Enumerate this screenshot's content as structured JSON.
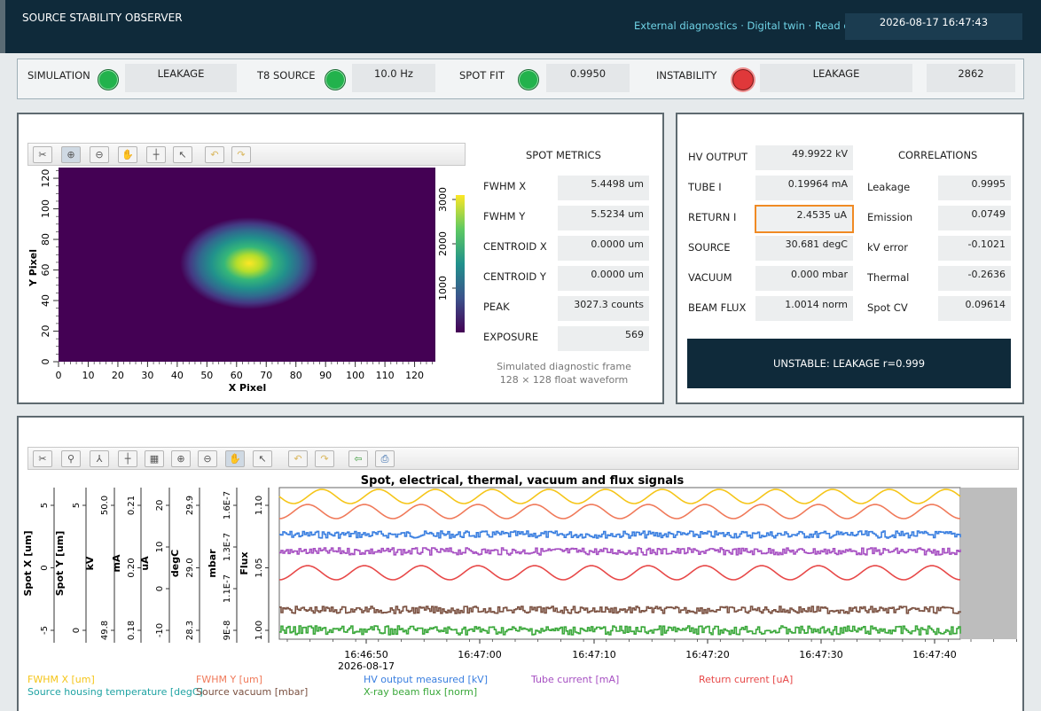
{
  "header": {
    "title": "SOURCE STABILITY OBSERVER",
    "info": "External diagnostics · Digital twin · Read only",
    "clock": "2026-08-17 16:47:43"
  },
  "status": {
    "simulation_label": "SIMULATION",
    "simulation_value": "LEAKAGE",
    "t8_label": "T8 SOURCE",
    "t8_value": "10.0 Hz",
    "spotfit_label": "SPOT FIT",
    "spotfit_value": "0.9950",
    "instability_label": "INSTABILITY",
    "instability_value": "LEAKAGE",
    "counter": "2862",
    "colors": {
      "ok": "#22b24c",
      "alarm": "#e0383a"
    }
  },
  "image_panel": {
    "x_label": "X Pixel",
    "y_label": "Y Pixel",
    "x_ticks": [
      "0",
      "10",
      "20",
      "30",
      "40",
      "50",
      "60",
      "70",
      "80",
      "90",
      "100",
      "110",
      "120"
    ],
    "y_ticks": [
      "0",
      "20",
      "40",
      "60",
      "80",
      "100",
      "120"
    ],
    "cbar_ticks": [
      "1000",
      "2000",
      "3000"
    ],
    "caption_line1": "Simulated diagnostic frame",
    "caption_line2": "128 × 128 float waveform",
    "metrics_title": "SPOT METRICS",
    "metrics": [
      {
        "label": "FWHM X",
        "value": "5.4498 um"
      },
      {
        "label": "FWHM Y",
        "value": "5.5234 um"
      },
      {
        "label": "CENTROID X",
        "value": "0.0000 um"
      },
      {
        "label": "CENTROID Y",
        "value": "0.0000 um"
      },
      {
        "label": "PEAK",
        "value": "3027.3 counts"
      },
      {
        "label": "EXPOSURE",
        "value": "569"
      }
    ]
  },
  "electrical": {
    "rows": [
      {
        "label": "HV OUTPUT",
        "value": "49.9922 kV"
      },
      {
        "label": "TUBE I",
        "value": "0.19964 mA"
      },
      {
        "label": "RETURN I",
        "value": "2.4535 uA"
      },
      {
        "label": "SOURCE",
        "value": "30.681 degC"
      },
      {
        "label": "VACUUM",
        "value": "0.000 mbar"
      },
      {
        "label": "BEAM FLUX",
        "value": "1.0014 norm"
      }
    ],
    "correlations_title": "CORRELATIONS",
    "correlations": [
      {
        "label": "Leakage",
        "value": "0.9995"
      },
      {
        "label": "Emission",
        "value": "0.0749"
      },
      {
        "label": "kV error",
        "value": "-0.1021"
      },
      {
        "label": "Thermal",
        "value": "-0.2636"
      },
      {
        "label": "Spot CV",
        "value": "0.09614"
      }
    ],
    "banner": "UNSTABLE: LEAKAGE r=0.999",
    "highlight_color": "#f08a24"
  },
  "chart_data": {
    "type": "line",
    "title": "Spot, electrical, thermal, vacuum and flux signals",
    "x_ticks": [
      "16:46:50",
      "16:47:00",
      "16:47:10",
      "16:47:20",
      "16:47:30",
      "16:47:40"
    ],
    "x_date": "2026-08-17",
    "axes": [
      {
        "label": "Spot X [um]",
        "ticks": [
          "-5",
          "0",
          "5"
        ]
      },
      {
        "label": "Spot Y [um]",
        "ticks": [
          "0",
          "5"
        ]
      },
      {
        "label": "kV",
        "ticks": [
          "49.8",
          "50.0"
        ]
      },
      {
        "label": "mA",
        "ticks": [
          "0.18",
          "0.20",
          "0.21"
        ]
      },
      {
        "label": "uA",
        "ticks": [
          "-10",
          "0",
          "10",
          "20"
        ]
      },
      {
        "label": "degC",
        "ticks": [
          "28.3",
          "29.0",
          "29.9"
        ]
      },
      {
        "label": "mbar",
        "ticks": [
          "9E-8",
          "1.1E-7",
          "1.3E-7",
          "1.6E-7"
        ]
      },
      {
        "label": "Flux",
        "ticks": [
          "1.00",
          "1.05",
          "1.10"
        ]
      }
    ],
    "series": [
      {
        "name": "FWHM X [um]",
        "color": "#f5c518",
        "kind": "sine",
        "phase": 0
      },
      {
        "name": "FWHM Y [um]",
        "color": "#f07a5a",
        "kind": "sine",
        "phase": 1.57
      },
      {
        "name": "HV output measured [kV]",
        "color": "#3a7fe0",
        "kind": "noise"
      },
      {
        "name": "Tube current [mA]",
        "color": "#a64fc2",
        "kind": "noise"
      },
      {
        "name": "Return current [uA]",
        "color": "#e74848",
        "kind": "sine",
        "phase": 1.57
      },
      {
        "name": "Source housing temperature [degC]",
        "color": "#1fa3a3",
        "kind": "none"
      },
      {
        "name": "Source vacuum [mbar]",
        "color": "#7a5040",
        "kind": "noise"
      },
      {
        "name": "X-ray beam flux [norm]",
        "color": "#3aa83a",
        "kind": "noise"
      }
    ]
  }
}
